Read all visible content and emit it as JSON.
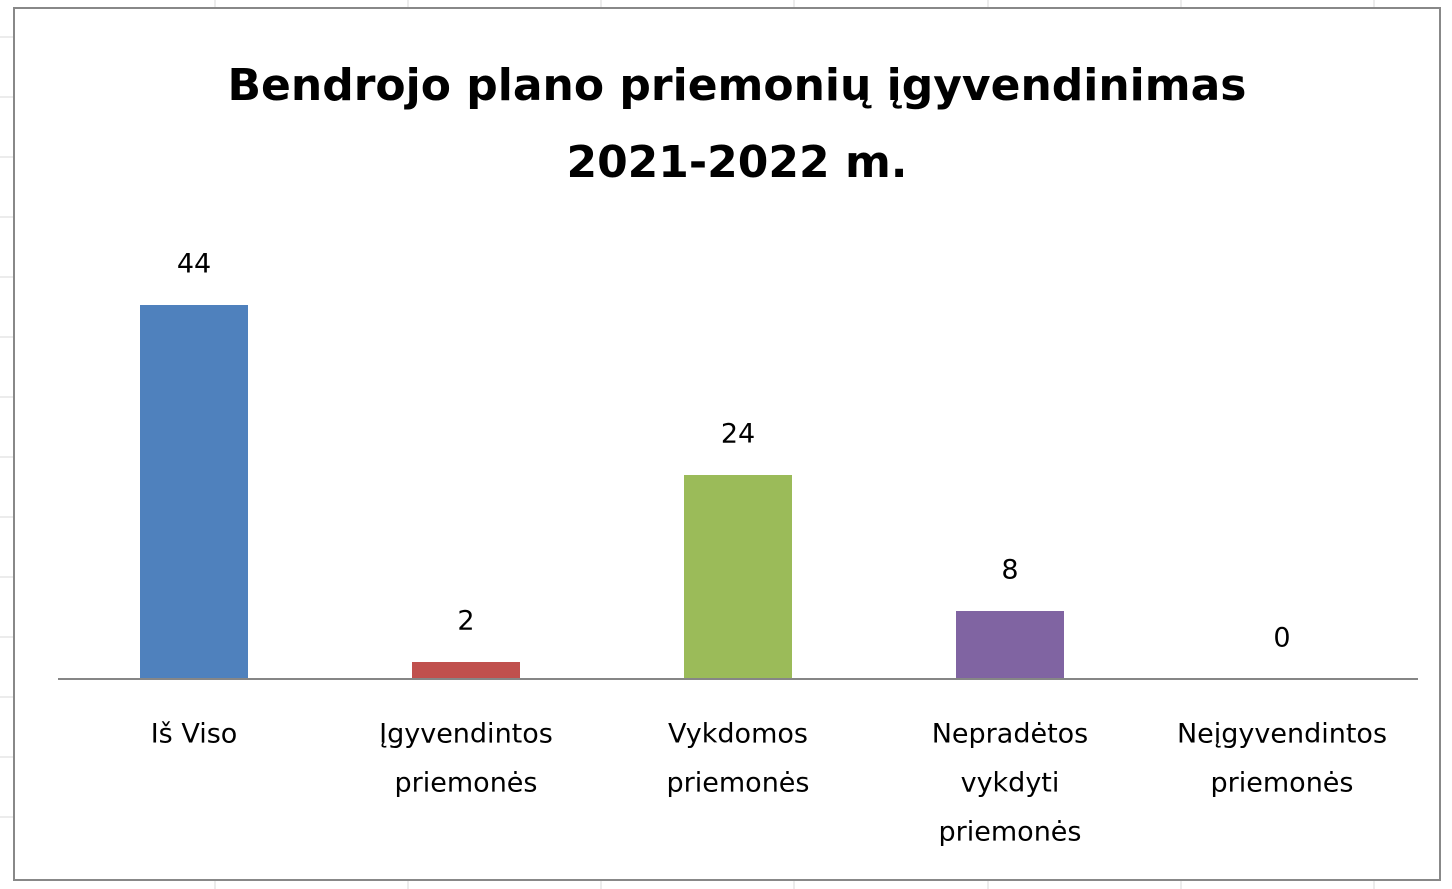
{
  "chart_data": {
    "type": "bar",
    "title": [
      "Bendrojo plano priemonių įgyvendinimas",
      "2021-2022 m."
    ],
    "categories": [
      [
        "Iš Viso"
      ],
      [
        "Įgyvendintos",
        "priemonės"
      ],
      [
        "Vykdomos",
        "priemonės"
      ],
      [
        "Nepradėtos",
        "vykdyti",
        "priemonės"
      ],
      [
        "Neįgyvendintos",
        "priemonės"
      ]
    ],
    "values": [
      44,
      2,
      24,
      8,
      0
    ],
    "colors": [
      "#4f81bd",
      "#c0504d",
      "#9bbb59",
      "#8064a2",
      "#4bacc6"
    ],
    "ylim": [
      0,
      50
    ]
  }
}
